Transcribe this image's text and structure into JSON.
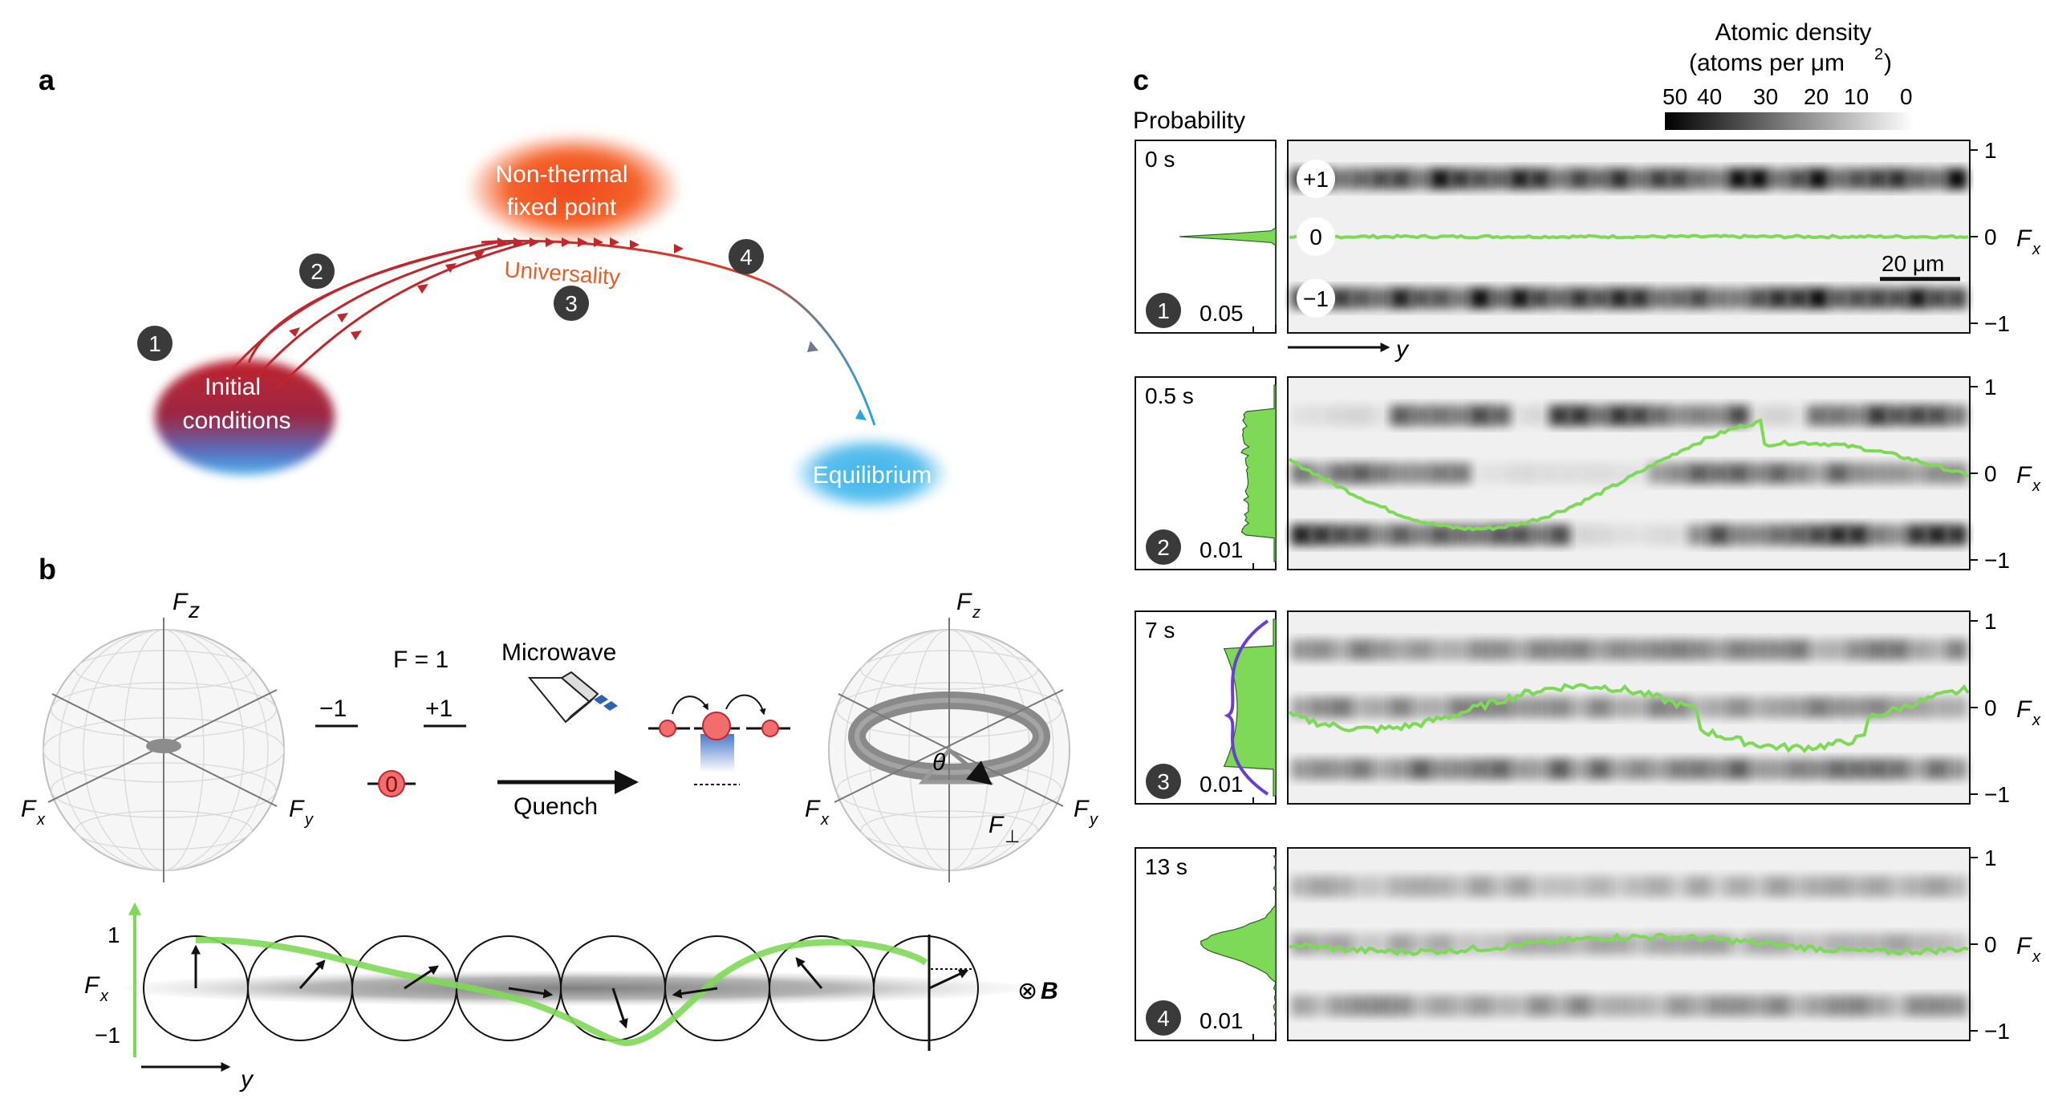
{
  "panel_a": {
    "letter": "a",
    "nodes": {
      "initial_line1": "Initial",
      "initial_line2": "conditions",
      "nonthermal_line1": "Non-thermal",
      "nonthermal_line2": "fixed point",
      "equilibrium": "Equilibrium",
      "universality": "Universality"
    },
    "steps": [
      "1",
      "2",
      "3",
      "4"
    ],
    "colors": {
      "red": "#c0272d",
      "blue": "#29a4dd",
      "orange": "#f15a24",
      "step_bg": "#3a3a3a"
    }
  },
  "panel_b": {
    "letter": "b",
    "sphere_left": {
      "fz": "F",
      "fz_sub": "z",
      "fx": "F",
      "fx_sub": "x",
      "fy": "F",
      "fy_sub": "y"
    },
    "level": {
      "title": "F = 1",
      "minus": "−1",
      "plus": "+1",
      "zero": "0"
    },
    "microwave": "Microwave",
    "quench": "Quench",
    "sphere_right": {
      "fz": "F",
      "fz_sub": "z",
      "fx": "F",
      "fx_sub": "x",
      "fy": "F",
      "fy_sub": "y",
      "fperp": "F",
      "fperp_sub": "⊥",
      "theta": "θ"
    },
    "chain": {
      "fx": "F",
      "fx_sub": "x",
      "tick_top": "1",
      "tick_bottom": "−1",
      "y": "y",
      "field": "⊗",
      "field_b": "B"
    },
    "colors": {
      "green": "#7ed957",
      "red": "#f26d6d"
    }
  },
  "panel_c": {
    "letter": "c",
    "probability": "Probability",
    "colorbar": {
      "title_line1": "Atomic density",
      "title_line2": "(atoms per μm",
      "title_sup": "2",
      "title_end": ")",
      "ticks": [
        "50",
        "40",
        "30",
        "20",
        "10",
        "0"
      ]
    },
    "y_axis": "y",
    "scale_bar": "20 μm",
    "fx": "F",
    "fx_sub": "x",
    "row1_labels": [
      "+1",
      "0",
      "−1"
    ],
    "rows": [
      {
        "time": "0 s",
        "step": "1",
        "prob_tick": "0.05",
        "ticks": [
          "1",
          "0",
          "−1"
        ]
      },
      {
        "time": "0.5 s",
        "step": "2",
        "prob_tick": "0.01",
        "ticks": [
          "1",
          "0",
          "−1"
        ]
      },
      {
        "time": "7 s",
        "step": "3",
        "prob_tick": "0.01",
        "ticks": [
          "1",
          "0",
          "−1"
        ]
      },
      {
        "time": "13 s",
        "step": "4",
        "prob_tick": "0.01",
        "ticks": [
          "1",
          "0",
          "−1"
        ]
      }
    ],
    "colors": {
      "green": "#7ed957",
      "purple": "#6a3fcf"
    }
  }
}
